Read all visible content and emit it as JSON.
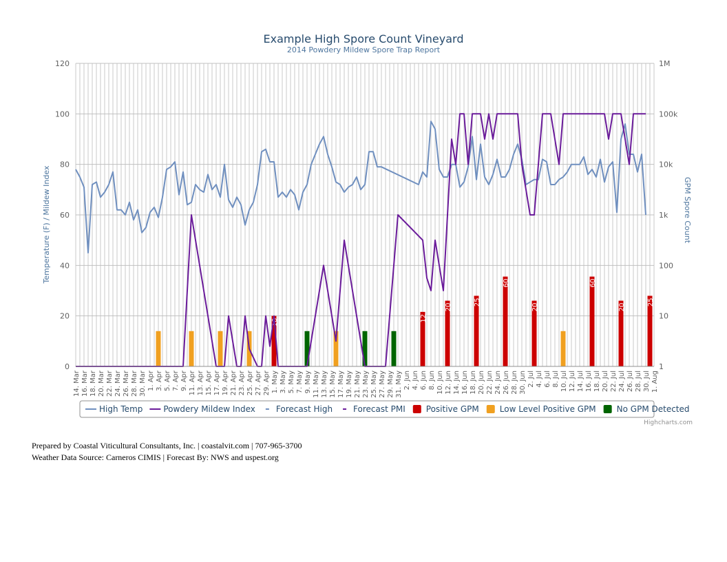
{
  "chart_data": {
    "type": "line",
    "title": "Example High Spore Count Vineyard",
    "subtitle": "2014 Powdery Mildew Spore Trap Report",
    "ylabel": "Temperature (F) / Mildew Index",
    "y2label": "GPM Spore Count",
    "ylim": [
      0,
      120
    ],
    "y_ticks": [
      "0",
      "20",
      "40",
      "60",
      "80",
      "100",
      "120"
    ],
    "y2_ticks": [
      "1",
      "10",
      "100",
      "1k",
      "10k",
      "100k",
      "1M"
    ],
    "y2_scale": "log10",
    "x_start": "2014-03-14",
    "x_days": 140,
    "x_ticks": [
      "14. Mar",
      "16. Mar",
      "18. Mar",
      "20. Mar",
      "22. Mar",
      "24. Mar",
      "26. Mar",
      "28. Mar",
      "30. Mar",
      "1. Apr",
      "3. Apr",
      "5. Apr",
      "7. Apr",
      "9. Apr",
      "11. Apr",
      "13. Apr",
      "15. Apr",
      "17. Apr",
      "19. Apr",
      "21. Apr",
      "23. Apr",
      "25. Apr",
      "27. Apr",
      "29. Apr",
      "1. May",
      "3. May",
      "5. May",
      "7. May",
      "9. May",
      "11. May",
      "13. May",
      "15. May",
      "17. May",
      "19. May",
      "21. May",
      "23. May",
      "25. May",
      "27. May",
      "29. May",
      "31. May",
      "2. Jun",
      "4. Jun",
      "6. Jun",
      "8. Jun",
      "10. Jun",
      "12. Jun",
      "14. Jun",
      "16. Jun",
      "18. Jun",
      "20. Jun",
      "22. Jun",
      "24. Jun",
      "26. Jun",
      "28. Jun",
      "30. Jun",
      "2. Jul",
      "4. Jul",
      "6. Jul",
      "8. Jul",
      "10. Jul",
      "12. Jul",
      "14. Jul",
      "16. Jul",
      "18. Jul",
      "20. Jul",
      "22. Jul",
      "24. Jul",
      "26. Jul",
      "28. Jul",
      "30. Jul",
      "1. Aug"
    ],
    "series": [
      {
        "name": "High Temp",
        "color": "#6f8fbf",
        "points": [
          [
            0,
            78
          ],
          [
            1,
            75
          ],
          [
            2,
            71
          ],
          [
            3,
            45
          ],
          [
            4,
            72
          ],
          [
            5,
            73
          ],
          [
            6,
            67
          ],
          [
            7,
            69
          ],
          [
            8,
            72
          ],
          [
            9,
            77
          ],
          [
            10,
            62
          ],
          [
            11,
            62
          ],
          [
            12,
            60
          ],
          [
            13,
            65
          ],
          [
            14,
            58
          ],
          [
            15,
            62
          ],
          [
            16,
            53
          ],
          [
            17,
            55
          ],
          [
            18,
            61
          ],
          [
            19,
            63
          ],
          [
            20,
            59
          ],
          [
            21,
            67
          ],
          [
            22,
            78
          ],
          [
            23,
            79
          ],
          [
            24,
            81
          ],
          [
            25,
            68
          ],
          [
            26,
            77
          ],
          [
            27,
            64
          ],
          [
            28,
            65
          ],
          [
            29,
            72
          ],
          [
            30,
            70
          ],
          [
            31,
            69
          ],
          [
            32,
            76
          ],
          [
            33,
            70
          ],
          [
            34,
            72
          ],
          [
            35,
            67
          ],
          [
            36,
            80
          ],
          [
            37,
            66
          ],
          [
            38,
            63
          ],
          [
            39,
            67
          ],
          [
            40,
            64
          ],
          [
            41,
            56
          ],
          [
            42,
            62
          ],
          [
            43,
            65
          ],
          [
            44,
            72
          ],
          [
            45,
            85
          ],
          [
            46,
            86
          ],
          [
            47,
            81
          ],
          [
            48,
            81
          ],
          [
            49,
            67
          ],
          [
            50,
            69
          ],
          [
            51,
            67
          ],
          [
            52,
            70
          ],
          [
            53,
            68
          ],
          [
            54,
            62
          ],
          [
            55,
            69
          ],
          [
            56,
            72
          ],
          [
            57,
            80
          ],
          [
            58,
            84
          ],
          [
            59,
            88
          ],
          [
            60,
            91
          ],
          [
            61,
            84
          ],
          [
            62,
            79
          ],
          [
            63,
            73
          ],
          [
            64,
            72
          ],
          [
            65,
            69
          ],
          [
            66,
            71
          ],
          [
            67,
            72
          ],
          [
            68,
            75
          ],
          [
            69,
            70
          ],
          [
            70,
            72
          ],
          [
            71,
            85
          ],
          [
            72,
            85
          ],
          [
            73,
            79
          ],
          [
            74,
            79
          ],
          [
            83,
            72
          ],
          [
            84,
            77
          ],
          [
            85,
            75
          ],
          [
            86,
            97
          ],
          [
            87,
            94
          ],
          [
            88,
            78
          ],
          [
            89,
            75
          ],
          [
            90,
            75
          ],
          [
            91,
            80
          ],
          [
            92,
            80
          ],
          [
            93,
            71
          ],
          [
            94,
            73
          ],
          [
            95,
            79
          ],
          [
            96,
            91
          ],
          [
            97,
            74
          ],
          [
            98,
            88
          ],
          [
            99,
            75
          ],
          [
            100,
            72
          ],
          [
            101,
            76
          ],
          [
            102,
            82
          ],
          [
            103,
            75
          ],
          [
            104,
            75
          ],
          [
            105,
            78
          ],
          [
            106,
            84
          ],
          [
            107,
            88
          ],
          [
            108,
            82
          ],
          [
            109,
            72
          ],
          [
            110,
            73
          ],
          [
            111,
            74
          ],
          [
            112,
            74
          ],
          [
            113,
            82
          ],
          [
            114,
            81
          ],
          [
            115,
            72
          ],
          [
            116,
            72
          ],
          [
            117,
            74
          ],
          [
            118,
            75
          ],
          [
            119,
            77
          ],
          [
            120,
            80
          ],
          [
            121,
            80
          ],
          [
            122,
            80
          ],
          [
            123,
            83
          ],
          [
            124,
            76
          ],
          [
            125,
            78
          ],
          [
            126,
            75
          ],
          [
            127,
            82
          ],
          [
            128,
            73
          ],
          [
            129,
            79
          ],
          [
            130,
            81
          ],
          [
            131,
            61
          ],
          [
            132,
            90
          ],
          [
            133,
            96
          ],
          [
            134,
            84
          ],
          [
            135,
            84
          ],
          [
            136,
            77
          ],
          [
            137,
            84
          ],
          [
            138,
            60
          ]
        ]
      },
      {
        "name": "Powdery Mildew Index",
        "color": "#6a1b9a",
        "points": [
          [
            0,
            0
          ],
          [
            26,
            0
          ],
          [
            28,
            60
          ],
          [
            30,
            40
          ],
          [
            32,
            20
          ],
          [
            34,
            0
          ],
          [
            36,
            0
          ],
          [
            37,
            20
          ],
          [
            39,
            0
          ],
          [
            40,
            0
          ],
          [
            41,
            20
          ],
          [
            42,
            7
          ],
          [
            44,
            0
          ],
          [
            45,
            0
          ],
          [
            46,
            20
          ],
          [
            47,
            8
          ],
          [
            48,
            20
          ],
          [
            49,
            0
          ],
          [
            50,
            0
          ],
          [
            56,
            0
          ],
          [
            58,
            20
          ],
          [
            60,
            40
          ],
          [
            62,
            20
          ],
          [
            63,
            10
          ],
          [
            65,
            50
          ],
          [
            67,
            30
          ],
          [
            69,
            10
          ],
          [
            70,
            0
          ],
          [
            75,
            0
          ],
          [
            78,
            60
          ],
          [
            84,
            50
          ],
          [
            85,
            35
          ],
          [
            86,
            30
          ],
          [
            87,
            50
          ],
          [
            88,
            40
          ],
          [
            89,
            30
          ],
          [
            90,
            60
          ],
          [
            91,
            90
          ],
          [
            92,
            80
          ],
          [
            93,
            100
          ],
          [
            94,
            100
          ],
          [
            95,
            80
          ],
          [
            96,
            100
          ],
          [
            97,
            100
          ],
          [
            98,
            100
          ],
          [
            99,
            90
          ],
          [
            100,
            100
          ],
          [
            101,
            90
          ],
          [
            102,
            100
          ],
          [
            103,
            100
          ],
          [
            104,
            100
          ],
          [
            105,
            100
          ],
          [
            106,
            100
          ],
          [
            107,
            100
          ],
          [
            108,
            80
          ],
          [
            109,
            70
          ],
          [
            110,
            60
          ],
          [
            111,
            60
          ],
          [
            112,
            80
          ],
          [
            113,
            100
          ],
          [
            114,
            100
          ],
          [
            115,
            100
          ],
          [
            116,
            90
          ],
          [
            117,
            80
          ],
          [
            118,
            100
          ],
          [
            119,
            100
          ],
          [
            120,
            100
          ],
          [
            121,
            100
          ],
          [
            122,
            100
          ],
          [
            123,
            100
          ],
          [
            124,
            100
          ],
          [
            125,
            100
          ],
          [
            126,
            100
          ],
          [
            127,
            100
          ],
          [
            128,
            100
          ],
          [
            129,
            90
          ],
          [
            130,
            100
          ],
          [
            131,
            100
          ],
          [
            132,
            100
          ],
          [
            133,
            90
          ],
          [
            134,
            80
          ],
          [
            135,
            100
          ],
          [
            136,
            100
          ],
          [
            137,
            100
          ],
          [
            138,
            100
          ]
        ]
      },
      {
        "name": "Forecast High",
        "color": "#6f8fbf",
        "points": []
      },
      {
        "name": "Forecast PMI",
        "color": "#6a1b9a",
        "points": []
      }
    ],
    "bars": [
      {
        "x": 20,
        "value": 5,
        "type": "low"
      },
      {
        "x": 28,
        "value": 5,
        "type": "low"
      },
      {
        "x": 35,
        "value": 5,
        "type": "low"
      },
      {
        "x": 42,
        "value": 5,
        "type": "low"
      },
      {
        "x": 48,
        "value": 10,
        "type": "positive",
        "label": "10"
      },
      {
        "x": 56,
        "value": 5,
        "type": "none"
      },
      {
        "x": 63,
        "value": 5,
        "type": "low"
      },
      {
        "x": 70,
        "value": 5,
        "type": "none"
      },
      {
        "x": 77,
        "value": 5,
        "type": "none"
      },
      {
        "x": 84,
        "value": 12,
        "type": "positive",
        "label": "12"
      },
      {
        "x": 90,
        "value": 20,
        "type": "positive",
        "label": "20"
      },
      {
        "x": 97,
        "value": 25,
        "type": "positive",
        "label": "25"
      },
      {
        "x": 104,
        "value": 60,
        "type": "positive",
        "label": "60"
      },
      {
        "x": 111,
        "value": 20,
        "type": "positive",
        "label": "20"
      },
      {
        "x": 118,
        "value": 5,
        "type": "low"
      },
      {
        "x": 125,
        "value": 60,
        "type": "positive",
        "label": "60"
      },
      {
        "x": 132,
        "value": 20,
        "type": "positive",
        "label": "20"
      },
      {
        "x": 139,
        "value": 25,
        "type": "positive",
        "label": "25"
      }
    ],
    "bar_colors": {
      "positive": "#cc0000",
      "low": "#f0a020",
      "none": "#006400"
    },
    "legend": [
      {
        "label": "High Temp",
        "kind": "line",
        "color": "#6f8fbf"
      },
      {
        "label": "Powdery Mildew Index",
        "kind": "line",
        "color": "#6a1b9a"
      },
      {
        "label": "Forecast High",
        "kind": "dash",
        "color": "#6f8fbf"
      },
      {
        "label": "Forecast PMI",
        "kind": "dash",
        "color": "#6a1b9a"
      },
      {
        "label": "Positive GPM",
        "kind": "box",
        "color": "#cc0000"
      },
      {
        "label": "Low Level Positive GPM",
        "kind": "box",
        "color": "#f0a020"
      },
      {
        "label": "No GPM Detected",
        "kind": "box",
        "color": "#006400"
      }
    ],
    "legend_position": "bottom",
    "grid": true
  },
  "credit": "Highcharts.com",
  "footer": {
    "line1": "Prepared by Coastal Viticultural Consultants, Inc. | coastalvit.com | 707-965-3700",
    "line2": "Weather Data Source: Carneros CIMIS | Forecast By: NWS and uspest.org"
  }
}
